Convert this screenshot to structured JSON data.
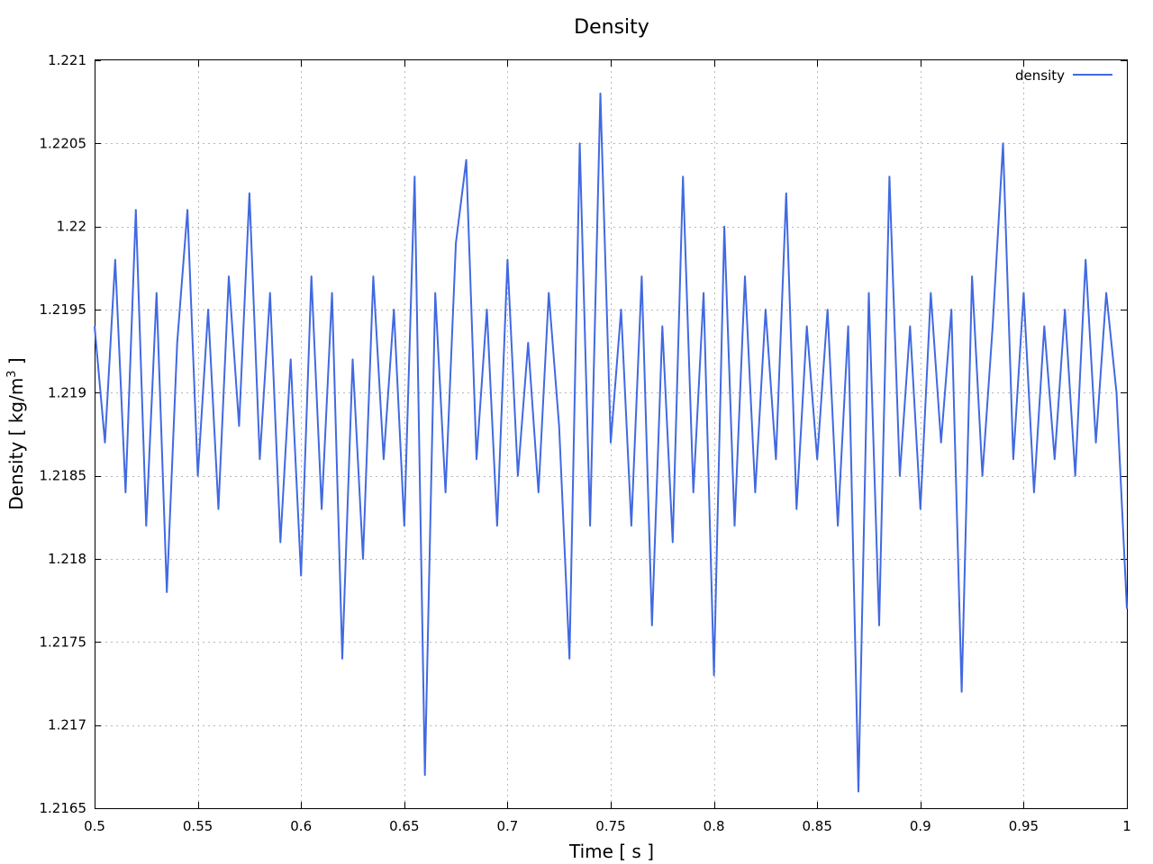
{
  "chart_data": {
    "type": "line",
    "title": "Density",
    "xlabel": "Time [ s ]",
    "ylabel_prefix": "Density [ kg/m",
    "ylabel_sup": "3",
    "ylabel_suffix": " ]",
    "xlim": [
      0.5,
      1.0
    ],
    "ylim": [
      1.2165,
      1.221
    ],
    "x_ticks": [
      0.5,
      0.55,
      0.6,
      0.65,
      0.7,
      0.75,
      0.8,
      0.85,
      0.9,
      0.95,
      1.0
    ],
    "x_tick_labels": [
      "0.5",
      "0.55",
      "0.6",
      "0.65",
      "0.7",
      "0.75",
      "0.8",
      "0.85",
      "0.9",
      "0.95",
      "1"
    ],
    "y_ticks": [
      1.2165,
      1.217,
      1.2175,
      1.218,
      1.2185,
      1.219,
      1.2195,
      1.22,
      1.2205,
      1.221
    ],
    "y_tick_labels": [
      "1.2165",
      "1.217",
      "1.2175",
      "1.218",
      "1.2185",
      "1.219",
      "1.2195",
      "1.22",
      "1.2205",
      "1.221"
    ],
    "grid": true,
    "legend_position": "top-right",
    "series": [
      {
        "name": "density",
        "color": "#4169e1",
        "x": [
          0.5,
          0.505,
          0.51,
          0.515,
          0.52,
          0.525,
          0.53,
          0.535,
          0.54,
          0.545,
          0.55,
          0.555,
          0.56,
          0.565,
          0.57,
          0.575,
          0.58,
          0.585,
          0.59,
          0.595,
          0.6,
          0.605,
          0.61,
          0.615,
          0.62,
          0.625,
          0.63,
          0.635,
          0.64,
          0.645,
          0.65,
          0.655,
          0.66,
          0.665,
          0.67,
          0.675,
          0.68,
          0.685,
          0.69,
          0.695,
          0.7,
          0.705,
          0.71,
          0.715,
          0.72,
          0.725,
          0.73,
          0.735,
          0.74,
          0.745,
          0.75,
          0.755,
          0.76,
          0.765,
          0.77,
          0.775,
          0.78,
          0.785,
          0.79,
          0.795,
          0.8,
          0.805,
          0.81,
          0.815,
          0.82,
          0.825,
          0.83,
          0.835,
          0.84,
          0.845,
          0.85,
          0.855,
          0.86,
          0.865,
          0.87,
          0.875,
          0.88,
          0.885,
          0.89,
          0.895,
          0.9,
          0.905,
          0.91,
          0.915,
          0.92,
          0.925,
          0.93,
          0.935,
          0.94,
          0.945,
          0.95,
          0.955,
          0.96,
          0.965,
          0.97,
          0.975,
          0.98,
          0.985,
          0.99,
          0.995,
          1.0
        ],
        "values": [
          1.2194,
          1.2187,
          1.2198,
          1.2184,
          1.2201,
          1.2182,
          1.2196,
          1.2178,
          1.2193,
          1.2201,
          1.2185,
          1.2195,
          1.2183,
          1.2197,
          1.2188,
          1.2202,
          1.2186,
          1.2196,
          1.2181,
          1.2192,
          1.2179,
          1.2197,
          1.2183,
          1.2196,
          1.2174,
          1.2192,
          1.218,
          1.2197,
          1.2186,
          1.2195,
          1.2182,
          1.2203,
          1.2167,
          1.2196,
          1.2184,
          1.2199,
          1.2204,
          1.2186,
          1.2195,
          1.2182,
          1.2198,
          1.2185,
          1.2193,
          1.2184,
          1.2196,
          1.2188,
          1.2174,
          1.2205,
          1.2182,
          1.2208,
          1.2187,
          1.2195,
          1.2182,
          1.2197,
          1.2176,
          1.2194,
          1.2181,
          1.2203,
          1.2184,
          1.2196,
          1.2173,
          1.22,
          1.2182,
          1.2197,
          1.2184,
          1.2195,
          1.2186,
          1.2202,
          1.2183,
          1.2194,
          1.2186,
          1.2195,
          1.2182,
          1.2194,
          1.2166,
          1.2196,
          1.2176,
          1.2203,
          1.2185,
          1.2194,
          1.2183,
          1.2196,
          1.2187,
          1.2195,
          1.2172,
          1.2197,
          1.2185,
          1.2194,
          1.2205,
          1.2186,
          1.2196,
          1.2184,
          1.2194,
          1.2186,
          1.2195,
          1.2185,
          1.2198,
          1.2187,
          1.2196,
          1.219,
          1.2177
        ]
      }
    ]
  }
}
